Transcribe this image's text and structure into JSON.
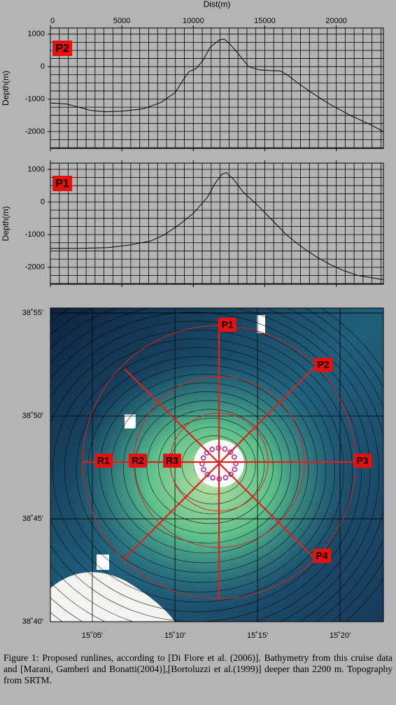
{
  "chart_data": [
    {
      "type": "line",
      "label": "P2",
      "x_label": "Dist(m)",
      "y_label": "Depth(m)",
      "xlim": [
        0,
        23300
      ],
      "ylim": [
        -2520,
        1190
      ],
      "xticks": [
        0,
        5000,
        10000,
        15000,
        20000
      ],
      "yticks": [
        -2000,
        -1000,
        0,
        1000
      ],
      "xtick_labels": true,
      "grid": {
        "x_step": 625,
        "y_step": 250
      },
      "color": "#000000",
      "x": [
        0,
        1130,
        2840,
        3820,
        5050,
        6520,
        7750,
        8730,
        9310,
        9700,
        10200,
        10690,
        11180,
        11810,
        12160,
        12550,
        13140,
        13870,
        14610,
        15340,
        16080,
        16570,
        17300,
        18280,
        19510,
        20980,
        22450,
        23300
      ],
      "values": [
        -1120,
        -1150,
        -1350,
        -1390,
        -1370,
        -1300,
        -1100,
        -800,
        -400,
        -150,
        -60,
        200,
        600,
        820,
        850,
        700,
        400,
        0,
        -100,
        -120,
        -130,
        -250,
        -500,
        -800,
        -1150,
        -1500,
        -1800,
        -2000
      ]
    },
    {
      "type": "line",
      "label": "P1",
      "y_label": "Depth(m)",
      "xlim": [
        0,
        23300
      ],
      "ylim": [
        -2520,
        1190
      ],
      "xticks": [
        0,
        5000,
        10000,
        15000,
        20000
      ],
      "yticks": [
        -2000,
        -1000,
        0,
        1000
      ],
      "xtick_labels": false,
      "grid": {
        "x_step": 625,
        "y_step": 250
      },
      "color": "#000000",
      "x": [
        0,
        2000,
        4000,
        5500,
        7000,
        8000,
        9000,
        10000,
        11000,
        11500,
        12000,
        12300,
        12800,
        13500,
        14500,
        15500,
        16500,
        17500,
        18500,
        19500,
        20500,
        21500,
        22500,
        23300
      ],
      "values": [
        -1420,
        -1420,
        -1400,
        -1320,
        -1200,
        -1000,
        -700,
        -350,
        150,
        550,
        850,
        900,
        700,
        300,
        -100,
        -550,
        -1000,
        -1350,
        -1650,
        -1900,
        -2100,
        -2250,
        -2320,
        -2380
      ]
    }
  ],
  "map": {
    "xlim": [
      15.041,
      15.377
    ],
    "ylim": [
      38.6667,
      38.9207
    ],
    "xticks": [
      {
        "value": 15.0833,
        "label": "15˚05'"
      },
      {
        "value": 15.1667,
        "label": "15˚10'"
      },
      {
        "value": 15.25,
        "label": "15˚15'"
      },
      {
        "value": 15.3333,
        "label": "15˚20'"
      }
    ],
    "yticks": [
      {
        "value": 38.6667,
        "label": "38˚40'"
      },
      {
        "value": 38.75,
        "label": "38˚45'"
      },
      {
        "value": 38.8333,
        "label": "38˚50'"
      },
      {
        "value": 38.9167,
        "label": "38˚55'"
      }
    ],
    "runlines": [
      "P1",
      "P2",
      "P3",
      "P4"
    ],
    "rings": [
      "R1",
      "R2",
      "R3"
    ]
  },
  "caption": "Figure 1: Proposed runlines, according to [Di Fiore et al. (2006)]. Bathymetry from this cruise data and [Marani, Gamberi and Bonatti(2004)],[Bortoluzzi et al.(1999)] deeper than 2200 m. Topography from SRTM."
}
